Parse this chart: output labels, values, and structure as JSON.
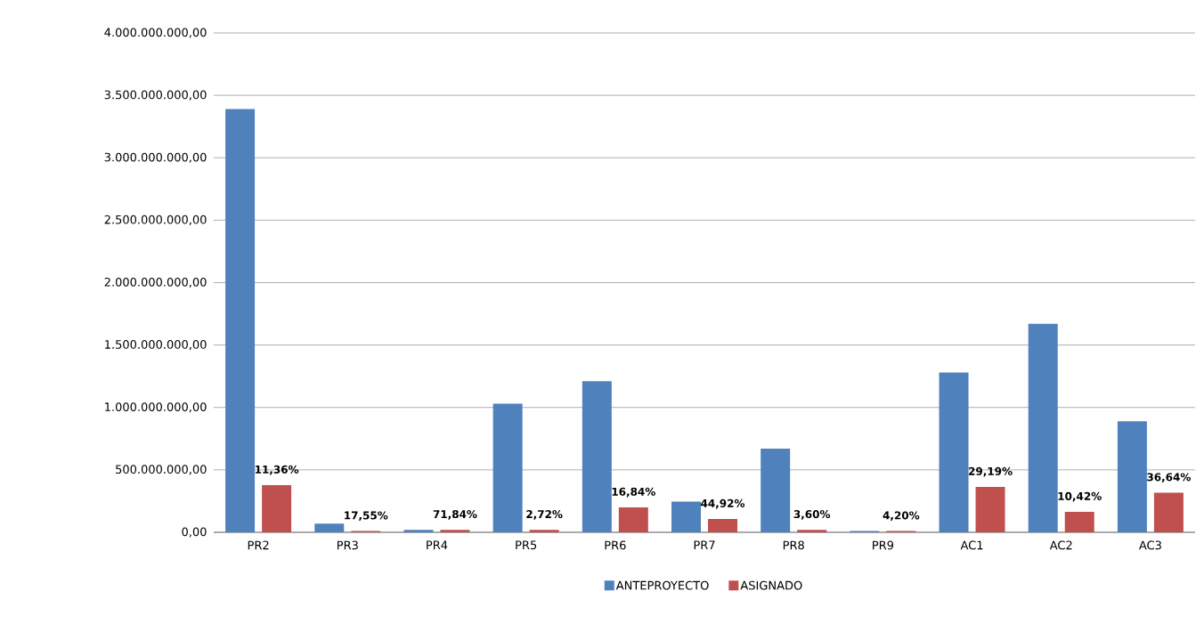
{
  "chart_data": {
    "type": "bar",
    "categories": [
      "PR2",
      "PR3",
      "PR4",
      "PR5",
      "PR6",
      "PR7",
      "PR8",
      "PR9",
      "AC1",
      "AC2",
      "AC3"
    ],
    "series": [
      {
        "name": "ANTEPROYECTO",
        "color": "#4f81bd",
        "values": [
          3390000000,
          70000000,
          20000000,
          1030000000,
          1210000000,
          246000000,
          670000000,
          10000000,
          1280000000,
          1670000000,
          890000000
        ]
      },
      {
        "name": "ASIGNADO",
        "color": "#c0504d",
        "values": [
          378000000,
          10000000,
          20000000,
          20000000,
          200000000,
          107000000,
          20000000,
          10000000,
          364000000,
          164000000,
          317000000
        ]
      }
    ],
    "annotations": [
      "11,36%",
      "17,55%",
      "71,84%",
      "2,72%",
      "16,84%",
      "44,92%",
      "3,60%",
      "4,20%",
      "29,19%",
      "10,42%",
      "36,64%"
    ],
    "ylim": [
      0,
      4000000000
    ],
    "yticks": [
      {
        "value": 0,
        "label": "0,00"
      },
      {
        "value": 500000000,
        "label": "500.000.000,00"
      },
      {
        "value": 1000000000,
        "label": "1.000.000.000,00"
      },
      {
        "value": 1500000000,
        "label": "1.500.000.000,00"
      },
      {
        "value": 2000000000,
        "label": "2.000.000.000,00"
      },
      {
        "value": 2500000000,
        "label": "2.500.000.000,00"
      },
      {
        "value": 3000000000,
        "label": "3.000.000.000,00"
      },
      {
        "value": 3500000000,
        "label": "3.500.000.000,00"
      },
      {
        "value": 4000000000,
        "label": "4.000.000.000,00"
      }
    ],
    "grid": "y",
    "legend": "bottom"
  }
}
